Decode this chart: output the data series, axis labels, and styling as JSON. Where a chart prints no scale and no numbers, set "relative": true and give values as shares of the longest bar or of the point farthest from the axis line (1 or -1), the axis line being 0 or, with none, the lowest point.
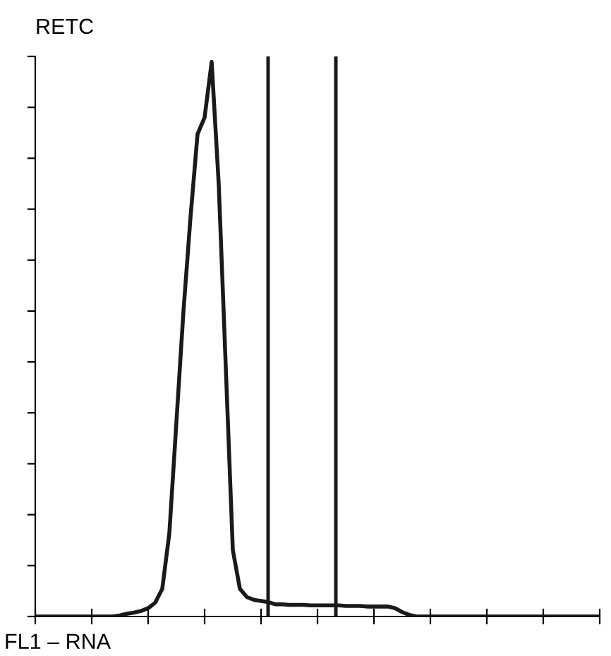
{
  "chart_data": {
    "type": "line",
    "relative": true,
    "ylabel": "RETC",
    "xlabel": "FL1 – RNA",
    "categories": [
      null,
      null,
      null,
      null,
      null,
      null,
      null,
      null,
      null,
      null,
      null,
      null,
      null,
      null,
      null,
      null,
      null,
      null,
      null,
      null,
      null,
      null,
      null,
      null,
      null,
      null,
      null,
      null,
      null,
      null,
      null,
      null,
      null,
      null,
      null,
      null,
      null,
      null,
      null,
      null,
      null,
      null,
      null,
      null,
      null,
      null,
      null,
      null,
      null,
      null,
      null,
      null,
      null,
      null,
      null,
      null,
      null,
      null,
      null,
      null,
      null,
      null,
      null,
      null,
      null,
      null,
      null,
      null,
      null,
      null,
      null,
      null,
      null,
      null,
      null,
      null,
      null,
      null,
      null,
      null,
      null
    ],
    "values": [
      0,
      0,
      0,
      0,
      0,
      0,
      0,
      0,
      0,
      0,
      0,
      0,
      0.002,
      0.005,
      0.007,
      0.01,
      0.015,
      0.025,
      0.05,
      0.15,
      0.35,
      0.55,
      0.72,
      0.87,
      0.9,
      1.0,
      0.78,
      0.45,
      0.12,
      0.05,
      0.035,
      0.03,
      0.028,
      0.026,
      0.022,
      0.022,
      0.021,
      0.021,
      0.021,
      0.02,
      0.02,
      0.02,
      0.02,
      0.02,
      0.019,
      0.019,
      0.019,
      0.018,
      0.018,
      0.018,
      0.018,
      0.015,
      0.008,
      0.003,
      0,
      0,
      0,
      0,
      0,
      0,
      0,
      0,
      0,
      0,
      0,
      0,
      0,
      0,
      0,
      0,
      0,
      0,
      0,
      0,
      0,
      0,
      0,
      0,
      0,
      0,
      0
    ],
    "color": "#1a1a1a",
    "marker": "none",
    "line_style": "solid",
    "grid": false,
    "legend": false
  }
}
